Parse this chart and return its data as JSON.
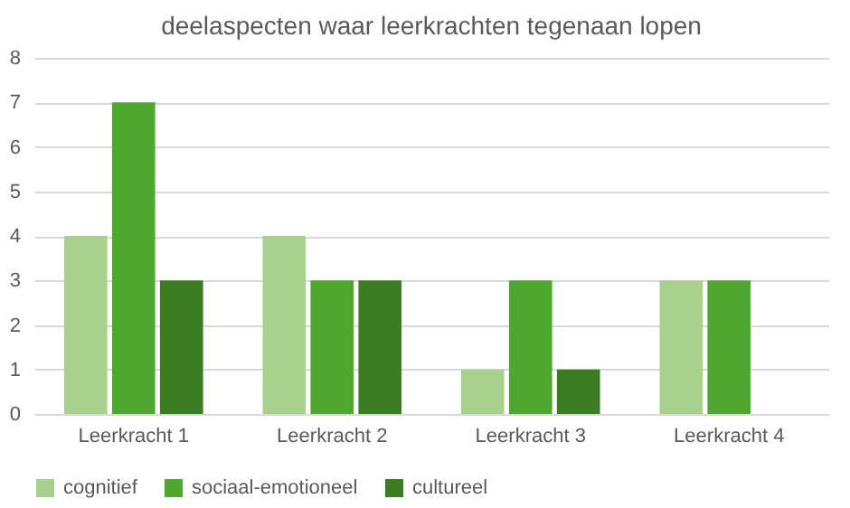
{
  "chart_data": {
    "type": "bar",
    "title": "deelaspecten waar leerkrachten tegenaan lopen",
    "categories": [
      "Leerkracht 1",
      "Leerkracht 2",
      "Leerkracht 3",
      "Leerkracht 4"
    ],
    "series": [
      {
        "name": "cognitief",
        "color": "#a9d18e",
        "values": [
          4,
          4,
          1,
          3
        ]
      },
      {
        "name": "sociaal-emotioneel",
        "color": "#4ea72e",
        "values": [
          7,
          3,
          3,
          3
        ]
      },
      {
        "name": "cultureel",
        "color": "#3b7d23",
        "values": [
          3,
          3,
          1,
          null
        ]
      }
    ],
    "ylim": [
      0,
      8
    ],
    "yticks": [
      0,
      1,
      2,
      3,
      4,
      5,
      6,
      7,
      8
    ],
    "grid": "y",
    "legend": "bottom"
  }
}
